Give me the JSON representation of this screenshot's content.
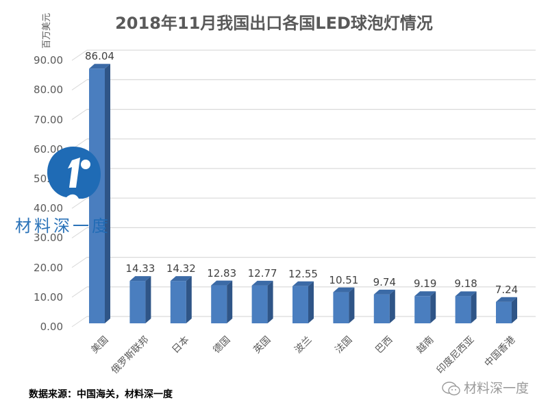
{
  "chart_data": {
    "type": "bar",
    "style": "3d-column",
    "title": "2018年11月我国出口各国LED球泡灯情况",
    "xlabel": "",
    "ylabel": "百万美元",
    "ylim": [
      0,
      90
    ],
    "yticks": [
      "0.00",
      "10.00",
      "20.00",
      "30.00",
      "40.00",
      "50.00",
      "60.00",
      "70.00",
      "80.00",
      "90.00"
    ],
    "grid": true,
    "legend": null,
    "categories": [
      "美国",
      "俄罗斯联邦",
      "日本",
      "德国",
      "英国",
      "波兰",
      "法国",
      "巴西",
      "越南",
      "印度尼西亚",
      "中国香港"
    ],
    "values": [
      86.04,
      14.33,
      14.32,
      12.83,
      12.77,
      12.55,
      10.51,
      9.74,
      9.19,
      9.18,
      7.24
    ],
    "value_labels": [
      "86.04",
      "14.33",
      "14.32",
      "12.83",
      "12.77",
      "12.55",
      "10.51",
      "9.74",
      "9.19",
      "9.18",
      "7.24"
    ],
    "bar_color": "#4a7ebf",
    "bar_side_color": "#2f5587",
    "bar_top_color": "#3b6aa6"
  },
  "footer": {
    "source": "数据来源：中国海关，材料深一度",
    "wechat_account": "材料深一度"
  },
  "watermark": {
    "text": "材料深一度",
    "logo_letter": "i",
    "color": "#1f6bb5"
  }
}
